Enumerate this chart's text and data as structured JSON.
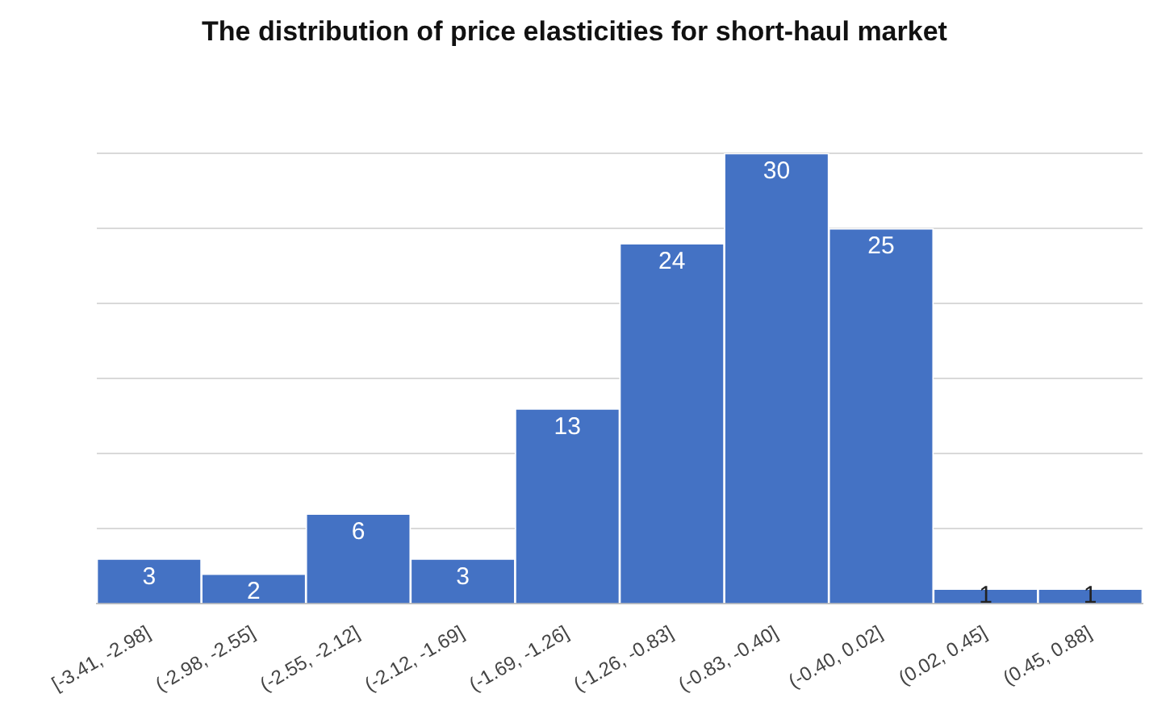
{
  "chart_data": {
    "type": "bar",
    "title": "The distribution of price elasticities for short-haul market",
    "categories": [
      "[-3.41, -2.98]",
      "(-2.98, -2.55]",
      "(-2.55, -2.12]",
      "(-2.12, -1.69]",
      "(-1.69, -1.26]",
      "(-1.26, -0.83]",
      "(-0.83, -0.40]",
      "(-0.40, 0.02]",
      "(0.02, 0.45]",
      "(0.45, 0.88]"
    ],
    "values": [
      3,
      2,
      6,
      3,
      13,
      24,
      30,
      25,
      1,
      1
    ],
    "color": "#4472c4",
    "ylim": [
      0,
      30
    ],
    "yticks": [
      {
        "value": 0,
        "label": null
      },
      {
        "value": 5,
        "label": null
      },
      {
        "value": 10,
        "label": null
      },
      {
        "value": 15,
        "label": null
      },
      {
        "value": 20,
        "label": null
      },
      {
        "value": 25,
        "label": null
      },
      {
        "value": 30,
        "label": null
      }
    ],
    "grid": "y",
    "tick_labels": "x",
    "data_labels": true,
    "legend": false
  }
}
